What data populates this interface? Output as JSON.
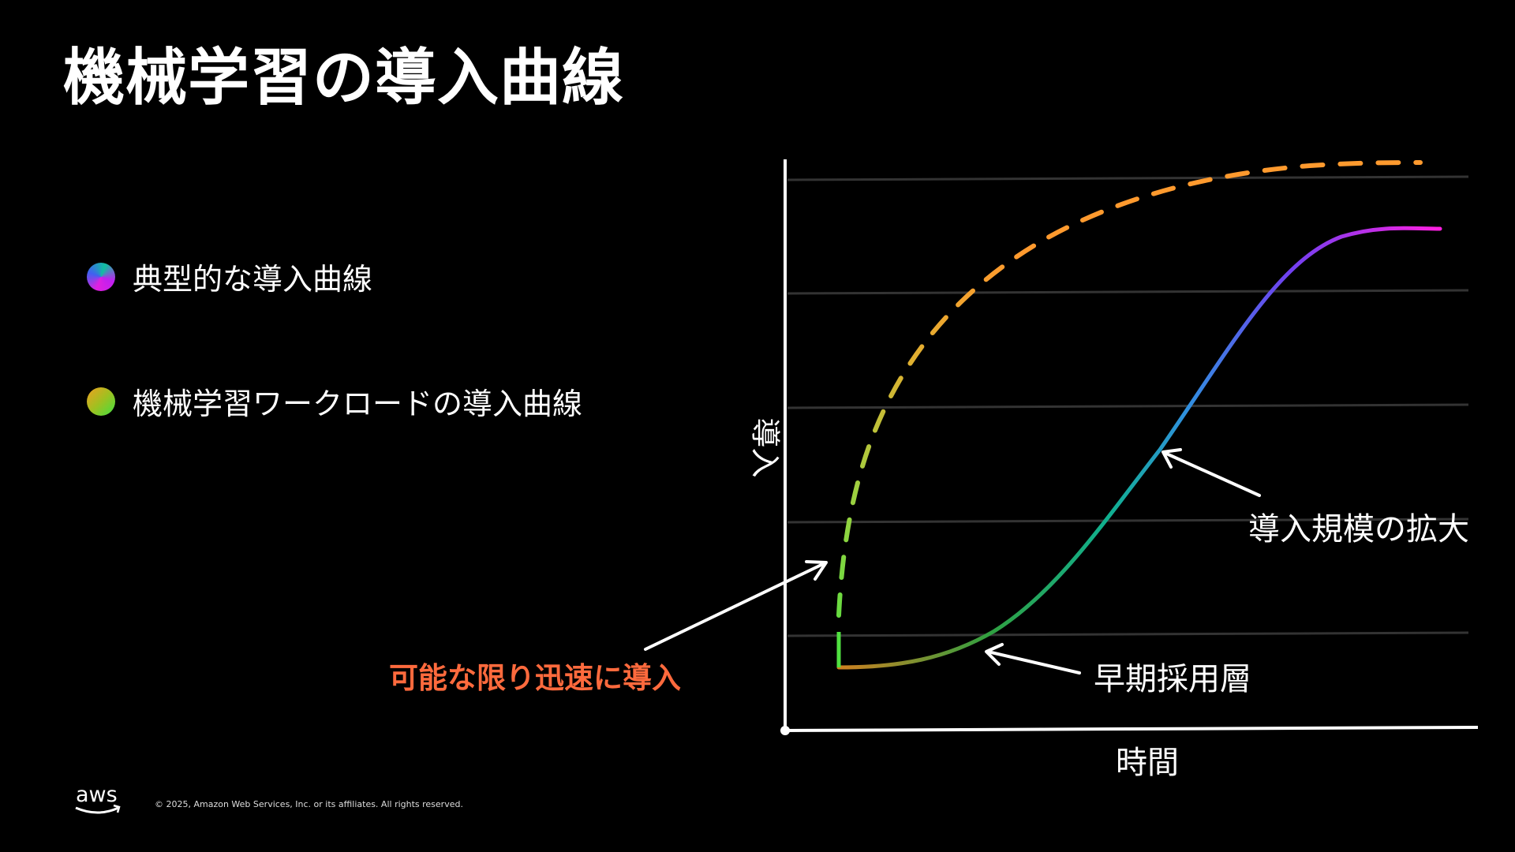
{
  "title": "機械学習の導入曲線",
  "legend": [
    {
      "label": "典型的な導入曲線",
      "colors": [
        "#e020e0",
        "#4060f0",
        "#10c0a0"
      ]
    },
    {
      "label": "機械学習ワークロードの導入曲線",
      "colors": [
        "#f0a020",
        "#40e040"
      ]
    }
  ],
  "diagram": {
    "y_axis_label": "導入",
    "x_axis_label": "時間",
    "annotations": {
      "scale_up": "導入規模の拡大",
      "early_adopters": "早期採用層",
      "fast_adoption": "可能な限り迅速に導入"
    },
    "colors": {
      "fast_adoption_text": "#ff6a3d",
      "ml_curve_start": "#50e040",
      "ml_curve_end": "#ff9a2e",
      "typical_curve_start": "#d08020",
      "typical_curve_mid": "#10b090",
      "typical_curve_end": "#ff20e0",
      "gridline": "#333333"
    }
  },
  "footer": {
    "logo": "aws",
    "copyright": "© 2025, Amazon Web Services, Inc. or its affiliates. All rights reserved."
  }
}
